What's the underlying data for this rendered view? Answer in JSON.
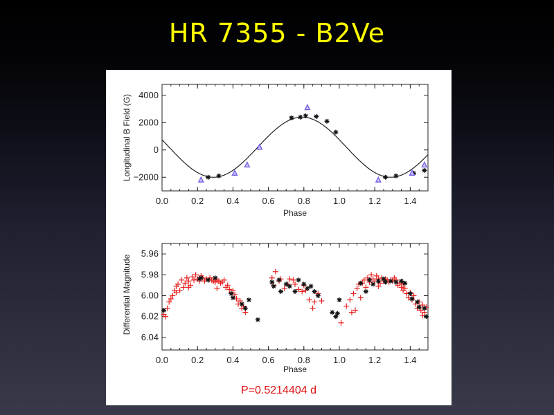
{
  "slide": {
    "title": "HR 7355 - B2Ve",
    "period_label": "P=0.5214404 d"
  },
  "colors": {
    "magnetic_black": "#111111",
    "magnetic_violet": "#7060e0",
    "photometry_red": "#e82020",
    "photometry_black": "#111111",
    "model_curve": "#222222"
  },
  "chart_data": [
    {
      "type": "scatter",
      "title": "",
      "xlabel": "Phase",
      "ylabel": "Longitudinal B Field (G)",
      "xlim": [
        0.0,
        1.5
      ],
      "ylim": [
        -3000,
        4800
      ],
      "x_ticks": [
        "0.0",
        "0.2",
        "0.4",
        "0.6",
        "0.8",
        "1.0",
        "1.2",
        "1.4"
      ],
      "y_ticks": [
        {
          "value": -2000,
          "label": "−2000"
        },
        {
          "value": 0,
          "label": "0"
        },
        {
          "value": 2000,
          "label": "2000"
        },
        {
          "value": 4000,
          "label": "4000"
        }
      ],
      "model_curve": {
        "mean": 200,
        "amplitude": 2200,
        "phase_of_max": 0.79
      },
      "series": [
        {
          "marker": "asterisk",
          "color": "#111111",
          "points": [
            [
              0.26,
              -2000
            ],
            [
              0.32,
              -1900
            ],
            [
              0.73,
              2350
            ],
            [
              0.78,
              2400
            ],
            [
              0.81,
              2500
            ],
            [
              0.87,
              2450
            ],
            [
              0.93,
              2100
            ],
            [
              0.98,
              1300
            ],
            [
              1.26,
              -2000
            ],
            [
              1.32,
              -1900
            ],
            [
              1.42,
              -1700
            ],
            [
              1.48,
              -1500
            ]
          ]
        },
        {
          "marker": "triangle",
          "color": "#7060e0",
          "points": [
            [
              0.22,
              -2200
            ],
            [
              0.41,
              -1700
            ],
            [
              0.48,
              -1100
            ],
            [
              0.55,
              200
            ],
            [
              0.82,
              3100
            ],
            [
              1.22,
              -2200
            ],
            [
              1.41,
              -1700
            ],
            [
              1.48,
              -1100
            ]
          ]
        }
      ]
    },
    {
      "type": "scatter",
      "title": "",
      "xlabel": "Phase",
      "ylabel": "Differential Magnitude",
      "xlim": [
        0.0,
        1.5
      ],
      "ylim": [
        6.052,
        5.95
      ],
      "x_ticks": [
        "0.0",
        "0.2",
        "0.4",
        "0.6",
        "0.8",
        "1.0",
        "1.2",
        "1.4"
      ],
      "y_ticks": [
        {
          "value": 5.96,
          "label": "5.96"
        },
        {
          "value": 5.98,
          "label": "5.98"
        },
        {
          "value": 6.0,
          "label": "6.00"
        },
        {
          "value": 6.02,
          "label": "6.02"
        },
        {
          "value": 6.04,
          "label": "6.04"
        }
      ],
      "series": [
        {
          "marker": "plus",
          "color": "#e82020",
          "points": [
            [
              0.01,
              6.018
            ],
            [
              0.03,
              6.012
            ],
            [
              0.04,
              6.006
            ],
            [
              0.05,
              6.003
            ],
            [
              0.06,
              6.0
            ],
            [
              0.07,
              5.995
            ],
            [
              0.08,
              5.991
            ],
            [
              0.09,
              5.989
            ],
            [
              0.1,
              5.995
            ],
            [
              0.11,
              5.985
            ],
            [
              0.12,
              5.992
            ],
            [
              0.13,
              5.988
            ],
            [
              0.14,
              5.983
            ],
            [
              0.15,
              5.986
            ],
            [
              0.16,
              5.99
            ],
            [
              0.17,
              5.982
            ],
            [
              0.18,
              5.985
            ],
            [
              0.19,
              5.98
            ],
            [
              0.2,
              5.984
            ],
            [
              0.21,
              5.986
            ],
            [
              0.22,
              5.981
            ],
            [
              0.23,
              5.983
            ],
            [
              0.24,
              5.986
            ],
            [
              0.25,
              5.984
            ],
            [
              0.26,
              5.985
            ],
            [
              0.27,
              5.983
            ],
            [
              0.28,
              5.985
            ],
            [
              0.29,
              5.986
            ],
            [
              0.3,
              5.987
            ],
            [
              0.31,
              5.985
            ],
            [
              0.32,
              5.986
            ],
            [
              0.33,
              5.988
            ],
            [
              0.34,
              5.987
            ],
            [
              0.35,
              5.985
            ],
            [
              0.36,
              5.992
            ],
            [
              0.37,
              5.99
            ],
            [
              0.38,
              5.994
            ],
            [
              0.39,
              5.997
            ],
            [
              0.4,
              5.995
            ],
            [
              0.41,
              5.999
            ],
            [
              0.42,
              6.003
            ],
            [
              0.43,
              6.008
            ],
            [
              0.44,
              6.005
            ],
            [
              0.45,
              6.012
            ],
            [
              0.46,
              6.01
            ],
            [
              0.47,
              6.016
            ],
            [
              0.02,
              6.02
            ],
            [
              0.08,
              5.997
            ],
            [
              0.15,
              5.992
            ],
            [
              0.31,
              5.993
            ],
            [
              0.62,
              5.983
            ],
            [
              0.63,
              5.99
            ],
            [
              0.64,
              5.977
            ],
            [
              0.66,
              5.986
            ],
            [
              0.67,
              5.984
            ],
            [
              0.69,
              5.993
            ],
            [
              0.71,
              5.989
            ],
            [
              0.72,
              5.984
            ],
            [
              0.74,
              5.985
            ],
            [
              0.75,
              5.989
            ],
            [
              0.77,
              5.994
            ],
            [
              0.79,
              5.996
            ],
            [
              0.8,
              5.99
            ],
            [
              0.81,
              5.995
            ],
            [
              0.83,
              6.004
            ],
            [
              0.85,
              6.012
            ],
            [
              0.86,
              6.006
            ],
            [
              0.88,
              5.998
            ],
            [
              0.9,
              6.005
            ],
            [
              1.01,
              6.026
            ],
            [
              1.04,
              6.01
            ],
            [
              1.06,
              6.004
            ],
            [
              1.08,
              5.998
            ],
            [
              1.09,
              6.014
            ],
            [
              1.1,
              5.993
            ],
            [
              1.11,
              5.989
            ],
            [
              1.12,
              6.002
            ],
            [
              1.13,
              5.988
            ],
            [
              1.14,
              5.985
            ],
            [
              1.15,
              5.992
            ],
            [
              1.16,
              5.983
            ],
            [
              1.17,
              5.987
            ],
            [
              1.18,
              5.98
            ],
            [
              1.19,
              5.984
            ],
            [
              1.2,
              5.986
            ],
            [
              1.21,
              5.981
            ],
            [
              1.22,
              5.984
            ],
            [
              1.23,
              5.988
            ],
            [
              1.24,
              5.983
            ],
            [
              1.25,
              5.986
            ],
            [
              1.26,
              5.984
            ],
            [
              1.27,
              5.985
            ],
            [
              1.28,
              5.987
            ],
            [
              1.29,
              5.985
            ],
            [
              1.3,
              5.986
            ],
            [
              1.31,
              5.983
            ],
            [
              1.32,
              5.985
            ],
            [
              1.33,
              5.99
            ],
            [
              1.34,
              5.988
            ],
            [
              1.35,
              5.992
            ],
            [
              1.36,
              5.995
            ],
            [
              1.37,
              5.993
            ],
            [
              1.38,
              5.998
            ],
            [
              1.39,
              6.002
            ],
            [
              1.4,
              5.997
            ],
            [
              1.41,
              6.004
            ],
            [
              1.42,
              6.0
            ],
            [
              1.43,
              6.008
            ],
            [
              1.44,
              6.012
            ],
            [
              1.45,
              6.006
            ],
            [
              1.46,
              6.014
            ],
            [
              1.47,
              6.009
            ],
            [
              1.48,
              6.016
            ],
            [
              1.49,
              6.011
            ],
            [
              1.07,
              6.016
            ],
            [
              1.22,
              5.991
            ],
            [
              1.36,
              5.989
            ],
            [
              1.47,
              6.019
            ]
          ]
        },
        {
          "marker": "asterisk",
          "color": "#111111",
          "points": [
            [
              0.01,
              6.014
            ],
            [
              0.21,
              5.984
            ],
            [
              0.22,
              5.983
            ],
            [
              0.26,
              5.985
            ],
            [
              0.3,
              5.983
            ],
            [
              0.39,
              5.998
            ],
            [
              0.4,
              6.002
            ],
            [
              0.45,
              6.008
            ],
            [
              0.47,
              6.012
            ],
            [
              0.49,
              6.004
            ],
            [
              0.54,
              6.023
            ],
            [
              0.62,
              5.987
            ],
            [
              0.63,
              5.991
            ],
            [
              0.66,
              5.985
            ],
            [
              0.67,
              5.996
            ],
            [
              0.7,
              5.989
            ],
            [
              0.72,
              5.991
            ],
            [
              0.75,
              5.996
            ],
            [
              0.77,
              5.985
            ],
            [
              0.8,
              5.989
            ],
            [
              0.82,
              5.993
            ],
            [
              0.84,
              5.991
            ],
            [
              0.86,
              5.996
            ],
            [
              0.88,
              6.0
            ],
            [
              0.96,
              6.016
            ],
            [
              0.98,
              6.02
            ],
            [
              0.99,
              6.017
            ],
            [
              1.0,
              6.004
            ],
            [
              1.12,
              5.988
            ],
            [
              1.15,
              5.996
            ],
            [
              1.17,
              5.985
            ],
            [
              1.19,
              5.989
            ],
            [
              1.22,
              5.986
            ],
            [
              1.25,
              5.984
            ],
            [
              1.26,
              5.987
            ],
            [
              1.29,
              5.986
            ],
            [
              1.32,
              5.987
            ],
            [
              1.35,
              5.986
            ],
            [
              1.37,
              5.988
            ],
            [
              1.4,
              5.998
            ],
            [
              1.41,
              6.003
            ],
            [
              1.44,
              6.006
            ],
            [
              1.45,
              6.011
            ],
            [
              1.48,
              6.012
            ],
            [
              1.49,
              6.02
            ]
          ]
        }
      ]
    }
  ]
}
